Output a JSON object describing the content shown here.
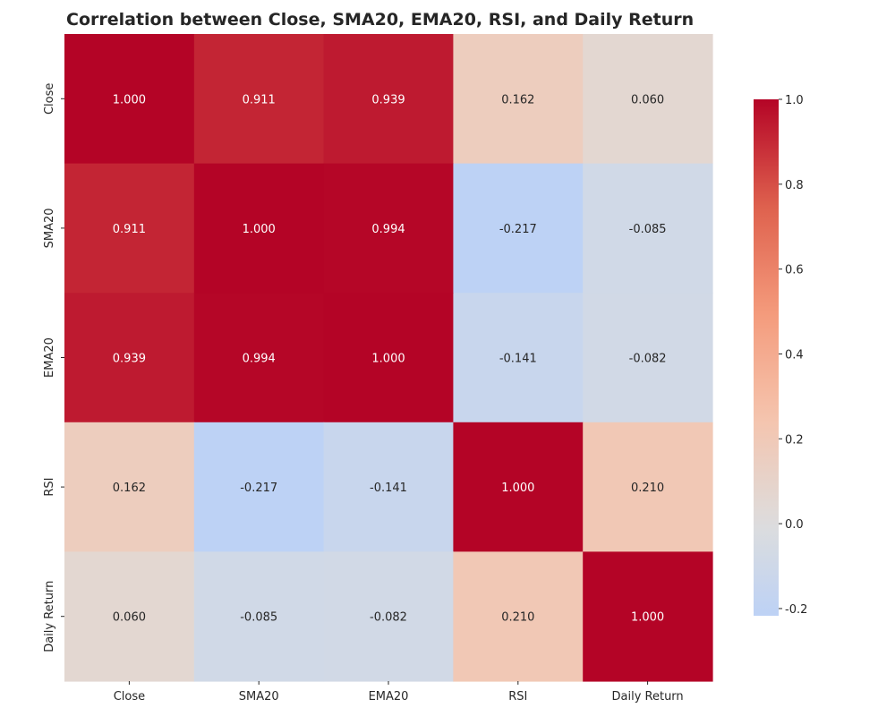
{
  "chart_data": {
    "type": "heatmap",
    "title": "Correlation between Close, SMA20, EMA20, RSI, and Daily Return",
    "row_labels": [
      "Close",
      "SMA20",
      "EMA20",
      "RSI",
      "Daily Return"
    ],
    "col_labels": [
      "Close",
      "SMA20",
      "EMA20",
      "RSI",
      "Daily Return"
    ],
    "values": [
      [
        1.0,
        0.911,
        0.939,
        0.162,
        0.06
      ],
      [
        0.911,
        1.0,
        0.994,
        -0.217,
        -0.085
      ],
      [
        0.939,
        0.994,
        1.0,
        -0.141,
        -0.082
      ],
      [
        0.162,
        -0.217,
        -0.141,
        1.0,
        0.21
      ],
      [
        0.06,
        -0.085,
        -0.082,
        0.21,
        1.0
      ]
    ],
    "value_format": "0.000",
    "colormap": "coolwarm",
    "colorbar": {
      "range": [
        -0.217,
        1.0
      ],
      "ticks": [
        1.0,
        0.8,
        0.6,
        0.4,
        0.2,
        0.0,
        -0.2
      ],
      "tick_labels": [
        "1.0",
        "0.8",
        "0.6",
        "0.4",
        "0.2",
        "0.0",
        "-0.2"
      ]
    },
    "grid": false
  }
}
